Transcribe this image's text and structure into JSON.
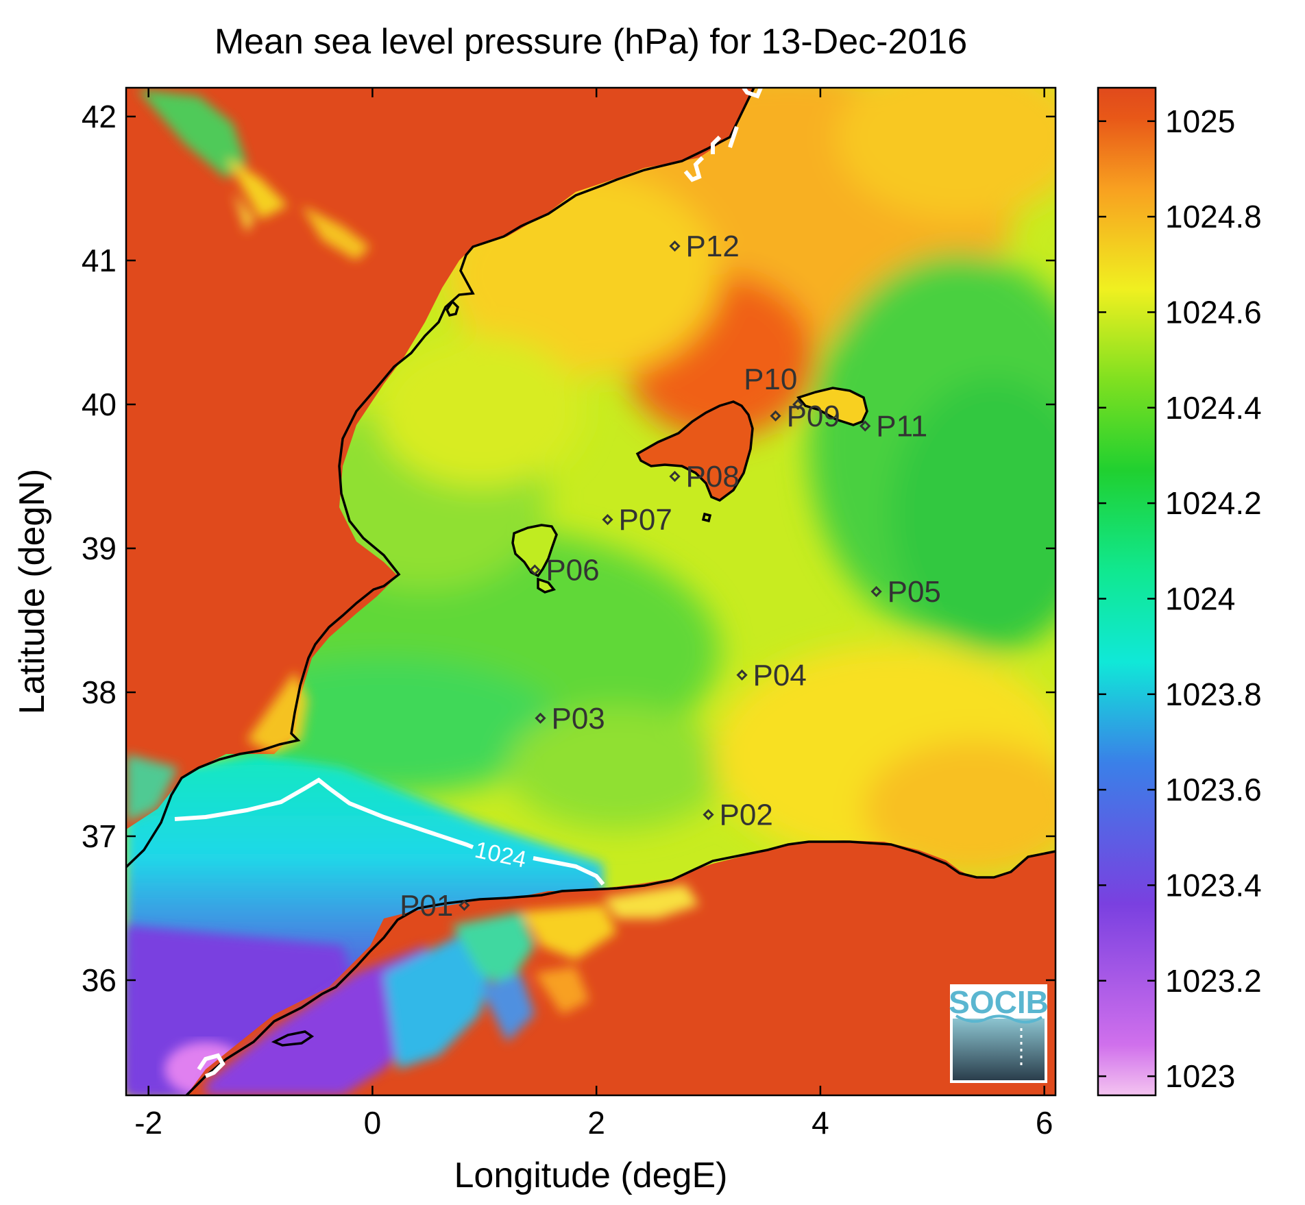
{
  "title": "Mean sea level pressure (hPa) for 13-Dec-2016",
  "chart_data": {
    "type": "heatmap",
    "title": "Mean sea level pressure (hPa) for 13-Dec-2016",
    "xlabel": "Longitude (degE)",
    "ylabel": "Latitude (degN)",
    "xlim": [
      -2.2,
      6.1
    ],
    "ylim": [
      35.2,
      42.2
    ],
    "x_ticks": [
      -2,
      0,
      2,
      4,
      6
    ],
    "y_ticks": [
      36,
      37,
      38,
      39,
      40,
      41,
      42
    ],
    "colorbar": {
      "min": 1022.96,
      "max": 1025.07,
      "ticks": [
        1023,
        1023.2,
        1023.4,
        1023.6,
        1023.8,
        1024,
        1024.2,
        1024.4,
        1024.6,
        1024.8,
        1025
      ],
      "colors": {
        "1023": "#f4b4f0",
        "1023.2": "#c040e8",
        "1023.4": "#7a40e0",
        "1023.6": "#3a80e8",
        "1023.8": "#10e8d8",
        "1024": "#10e890",
        "1024.2": "#20d030",
        "1024.4": "#80e020",
        "1024.6": "#f0f020",
        "1024.8": "#f8a020",
        "1025": "#e04a1c"
      }
    },
    "contour_label": "1024",
    "stations": [
      {
        "name": "P01",
        "lon": 0.82,
        "lat": 36.52
      },
      {
        "name": "P02",
        "lon": 3.0,
        "lat": 37.15
      },
      {
        "name": "P03",
        "lon": 1.5,
        "lat": 37.82
      },
      {
        "name": "P04",
        "lon": 3.3,
        "lat": 38.12
      },
      {
        "name": "P05",
        "lon": 4.5,
        "lat": 38.7
      },
      {
        "name": "P06",
        "lon": 1.45,
        "lat": 38.85
      },
      {
        "name": "P07",
        "lon": 2.1,
        "lat": 39.2
      },
      {
        "name": "P08",
        "lon": 2.7,
        "lat": 39.5
      },
      {
        "name": "P09",
        "lon": 3.6,
        "lat": 39.92
      },
      {
        "name": "P10",
        "lon": 3.8,
        "lat": 40.0
      },
      {
        "name": "P11",
        "lon": 4.4,
        "lat": 39.85
      },
      {
        "name": "P12",
        "lon": 2.7,
        "lat": 41.1
      }
    ]
  },
  "logo": {
    "text": "SOCIB",
    "icon": "socib-logo-icon"
  }
}
